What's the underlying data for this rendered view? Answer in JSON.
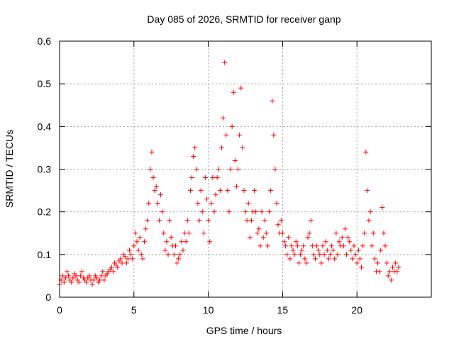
{
  "chart_data": {
    "type": "scatter",
    "title": "Day 085 of 2026, SRMTID for receiver ganp",
    "xlabel": "GPS time / hours",
    "ylabel": "SRMTID / TECUs",
    "xlim": [
      0,
      25
    ],
    "ylim": [
      0,
      0.6
    ],
    "x_ticks": [
      0,
      5,
      10,
      15,
      20
    ],
    "x_tick_labels": [
      "0",
      "5",
      "10",
      "15",
      "20"
    ],
    "y_ticks": [
      0,
      0.1,
      0.2,
      0.3,
      0.4,
      0.5,
      0.6
    ],
    "y_tick_labels": [
      "0",
      "0.1",
      "0.2",
      "0.3",
      "0.4",
      "0.5",
      "0.6"
    ],
    "grid": true,
    "marker": "+",
    "colors": {
      "series": "#ff0000",
      "grid": "#a0a0a0",
      "axis": "#000000"
    },
    "series": [
      {
        "name": "SRMTID",
        "x": [
          0.0,
          0.1,
          0.2,
          0.3,
          0.4,
          0.5,
          0.6,
          0.7,
          0.8,
          0.9,
          1.0,
          1.1,
          1.2,
          1.3,
          1.4,
          1.5,
          1.6,
          1.7,
          1.8,
          1.9,
          2.0,
          2.1,
          2.2,
          2.3,
          2.4,
          2.5,
          2.6,
          2.7,
          2.8,
          2.9,
          3.0,
          3.1,
          3.2,
          3.3,
          3.4,
          3.5,
          3.6,
          3.7,
          3.8,
          3.9,
          4.0,
          4.1,
          4.2,
          4.3,
          4.4,
          4.5,
          4.6,
          4.7,
          4.8,
          4.9,
          5.0,
          5.1,
          5.2,
          5.3,
          5.4,
          5.5,
          5.6,
          5.7,
          5.8,
          5.9,
          6.0,
          6.1,
          6.2,
          6.3,
          6.4,
          6.5,
          6.6,
          6.7,
          6.8,
          6.9,
          7.0,
          7.1,
          7.2,
          7.3,
          7.4,
          7.5,
          7.6,
          7.7,
          7.8,
          7.9,
          8.0,
          8.1,
          8.2,
          8.3,
          8.4,
          8.5,
          8.6,
          8.7,
          8.8,
          8.9,
          9.0,
          9.1,
          9.2,
          9.3,
          9.4,
          9.5,
          9.6,
          9.7,
          9.8,
          9.9,
          10.0,
          10.1,
          10.2,
          10.3,
          10.4,
          10.5,
          10.6,
          10.7,
          10.8,
          10.9,
          11.0,
          11.1,
          11.2,
          11.3,
          11.4,
          11.5,
          11.6,
          11.7,
          11.8,
          11.9,
          12.0,
          12.1,
          12.2,
          12.3,
          12.4,
          12.5,
          12.6,
          12.7,
          12.8,
          12.9,
          13.0,
          13.1,
          13.2,
          13.3,
          13.4,
          13.5,
          13.6,
          13.7,
          13.8,
          13.9,
          14.0,
          14.1,
          14.2,
          14.3,
          14.4,
          14.5,
          14.6,
          14.7,
          14.8,
          14.9,
          15.0,
          15.1,
          15.2,
          15.3,
          15.4,
          15.5,
          15.6,
          15.7,
          15.8,
          15.9,
          16.0,
          16.1,
          16.2,
          16.3,
          16.4,
          16.5,
          16.6,
          16.7,
          16.8,
          16.9,
          17.0,
          17.1,
          17.2,
          17.3,
          17.4,
          17.5,
          17.6,
          17.7,
          17.8,
          17.9,
          18.0,
          18.1,
          18.2,
          18.3,
          18.4,
          18.5,
          18.6,
          18.7,
          18.8,
          18.9,
          19.0,
          19.1,
          19.2,
          19.3,
          19.4,
          19.5,
          19.6,
          19.7,
          19.8,
          19.9,
          20.0,
          20.1,
          20.2,
          20.3,
          20.4,
          20.5,
          20.6,
          20.7,
          20.8,
          20.9,
          21.0,
          21.1,
          21.2,
          21.3,
          21.4,
          21.5,
          21.6,
          21.7,
          21.8,
          21.9,
          22.0,
          22.1,
          22.2,
          22.3,
          22.4,
          22.5,
          22.6,
          22.7,
          22.8
        ],
        "y": [
          0.03,
          0.04,
          0.05,
          0.035,
          0.045,
          0.06,
          0.05,
          0.04,
          0.035,
          0.045,
          0.055,
          0.05,
          0.04,
          0.035,
          0.05,
          0.06,
          0.045,
          0.04,
          0.035,
          0.045,
          0.05,
          0.04,
          0.03,
          0.04,
          0.05,
          0.045,
          0.035,
          0.04,
          0.05,
          0.06,
          0.04,
          0.05,
          0.055,
          0.06,
          0.065,
          0.07,
          0.06,
          0.08,
          0.075,
          0.07,
          0.085,
          0.09,
          0.08,
          0.1,
          0.095,
          0.08,
          0.09,
          0.11,
          0.1,
          0.09,
          0.12,
          0.15,
          0.13,
          0.11,
          0.14,
          0.1,
          0.09,
          0.13,
          0.16,
          0.18,
          0.22,
          0.3,
          0.34,
          0.28,
          0.25,
          0.26,
          0.22,
          0.18,
          0.24,
          0.2,
          0.15,
          0.11,
          0.13,
          0.1,
          0.18,
          0.14,
          0.12,
          0.1,
          0.12,
          0.08,
          0.09,
          0.1,
          0.13,
          0.11,
          0.15,
          0.13,
          0.18,
          0.15,
          0.25,
          0.28,
          0.33,
          0.35,
          0.3,
          0.22,
          0.18,
          0.25,
          0.2,
          0.15,
          0.28,
          0.23,
          0.18,
          0.13,
          0.22,
          0.28,
          0.2,
          0.24,
          0.28,
          0.3,
          0.25,
          0.35,
          0.42,
          0.55,
          0.38,
          0.25,
          0.2,
          0.3,
          0.4,
          0.48,
          0.32,
          0.26,
          0.3,
          0.38,
          0.49,
          0.35,
          0.25,
          0.2,
          0.18,
          0.22,
          0.14,
          0.18,
          0.2,
          0.25,
          0.2,
          0.15,
          0.16,
          0.12,
          0.2,
          0.14,
          0.18,
          0.15,
          0.12,
          0.2,
          0.25,
          0.46,
          0.38,
          0.3,
          0.22,
          0.17,
          0.15,
          0.18,
          0.15,
          0.13,
          0.12,
          0.1,
          0.14,
          0.09,
          0.12,
          0.11,
          0.1,
          0.13,
          0.12,
          0.08,
          0.1,
          0.11,
          0.12,
          0.09,
          0.08,
          0.14,
          0.15,
          0.18,
          0.12,
          0.1,
          0.09,
          0.12,
          0.11,
          0.1,
          0.08,
          0.12,
          0.1,
          0.13,
          0.11,
          0.09,
          0.1,
          0.12,
          0.11,
          0.09,
          0.15,
          0.1,
          0.13,
          0.12,
          0.14,
          0.12,
          0.16,
          0.1,
          0.14,
          0.13,
          0.11,
          0.09,
          0.12,
          0.1,
          0.08,
          0.11,
          0.09,
          0.07,
          0.12,
          0.15,
          0.34,
          0.25,
          0.18,
          0.2,
          0.12,
          0.15,
          0.09,
          0.06,
          0.08,
          0.06,
          0.11,
          0.21,
          0.15,
          0.12,
          0.08,
          0.05,
          0.06,
          0.04,
          0.07,
          0.06,
          0.08,
          0.06,
          0.07
        ]
      }
    ]
  }
}
